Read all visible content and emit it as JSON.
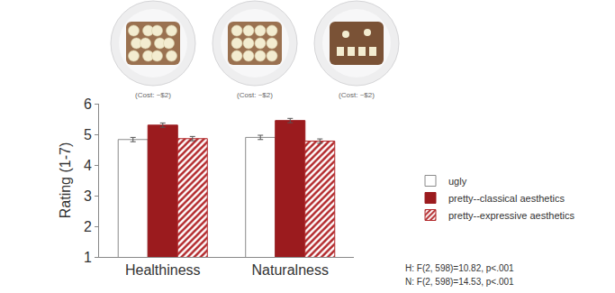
{
  "chart_data": {
    "type": "bar",
    "image_captions": [
      "(Cost: ~$2)",
      "(Cost: ~$2)",
      "(Cost: ~$2)"
    ],
    "y_label": "Rating (1-7)",
    "categories": [
      "Healthiness",
      "Naturalness"
    ],
    "series": [
      {
        "name": "ugly",
        "color": "#ffffff",
        "values": [
          4.83,
          4.9
        ],
        "errors": [
          0.07,
          0.07
        ]
      },
      {
        "name": "pretty--classical aesthetics",
        "color": "#9b1b1e",
        "values": [
          5.3,
          5.45
        ],
        "errors": [
          0.07,
          0.07
        ]
      },
      {
        "name": "pretty--expressive aesthetics",
        "color": "#b2282b",
        "marker": "striped",
        "values": [
          4.86,
          4.78
        ],
        "errors": [
          0.07,
          0.07
        ]
      }
    ],
    "ylim": [
      1,
      6
    ],
    "yticks": [
      1,
      2,
      3,
      4,
      5,
      6
    ],
    "legend": "right",
    "annotations": [
      "H: F(2, 598)=10.82, p<.001",
      "N: F(2, 598)=14.53, p<.001"
    ]
  }
}
